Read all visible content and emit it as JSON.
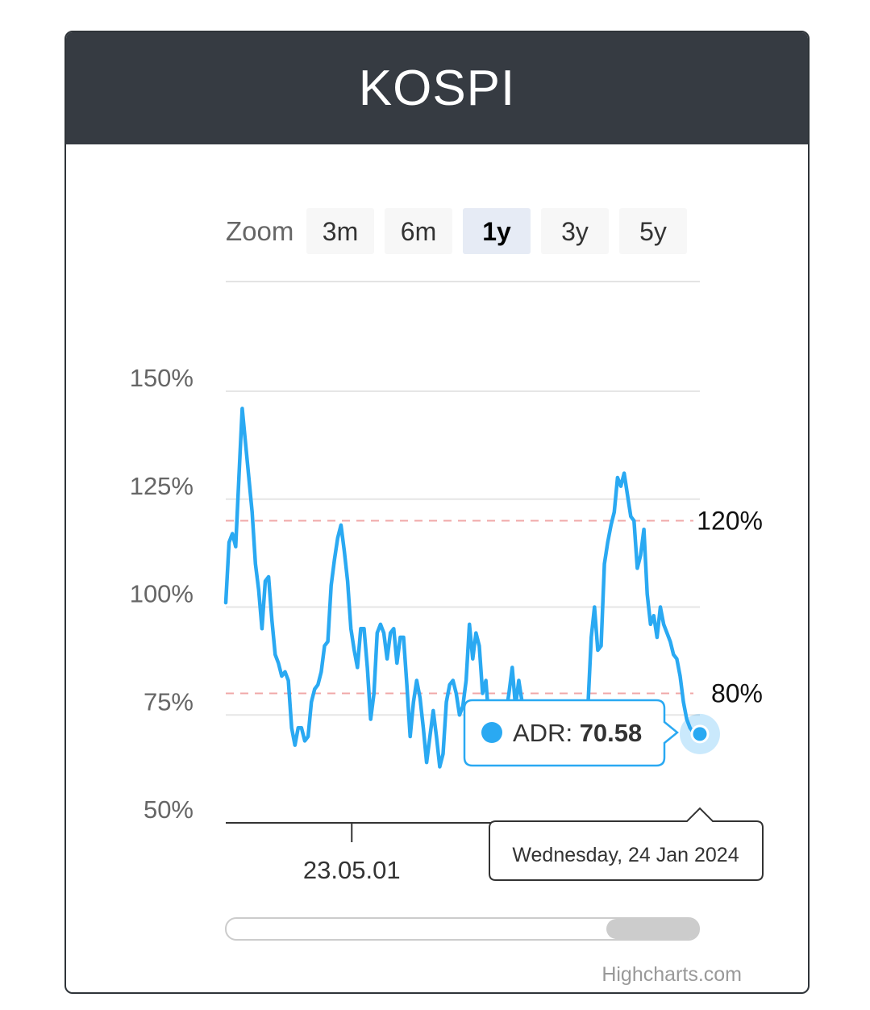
{
  "header": {
    "title": "KOSPI"
  },
  "zoom": {
    "label": "Zoom",
    "buttons": [
      {
        "label": "3m",
        "selected": false
      },
      {
        "label": "6m",
        "selected": false
      },
      {
        "label": "1y",
        "selected": true
      },
      {
        "label": "3y",
        "selected": false
      },
      {
        "label": "5y",
        "selected": false
      }
    ]
  },
  "tooltip": {
    "series_label": "ADR: ",
    "value": "70.58",
    "date": "Wednesday, 24 Jan 2024"
  },
  "credits": "Highcharts.com",
  "colors": {
    "header_bg": "#363b42",
    "line": "#2aa9f2",
    "threshold": "#f0a8a8",
    "selected_button": "#e6ebf5"
  },
  "chart_data": {
    "type": "line",
    "series": [
      {
        "name": "ADR",
        "values": [
          101,
          115,
          117,
          114,
          130,
          146,
          138,
          130,
          122,
          110,
          104,
          95,
          106,
          107,
          97,
          89,
          87,
          84,
          85,
          83,
          72,
          68,
          72,
          72,
          69,
          70,
          78,
          81,
          82,
          85,
          91,
          92,
          105,
          111,
          116,
          119,
          113,
          106,
          95,
          90,
          86,
          95,
          95,
          86,
          74,
          80,
          94,
          96,
          94,
          88,
          94,
          95,
          87,
          93,
          93,
          82,
          70,
          78,
          83,
          79,
          72,
          64,
          70,
          76,
          70,
          63,
          66,
          78,
          82,
          83,
          80,
          75,
          77,
          83,
          96,
          88,
          94,
          91,
          80,
          83,
          73,
          70,
          64,
          68,
          70,
          75,
          80,
          86,
          77,
          83,
          78,
          70,
          73,
          69,
          65,
          66,
          71,
          69,
          71,
          70,
          74,
          75,
          76,
          78,
          78,
          67,
          70,
          65,
          65,
          73,
          77,
          93,
          100,
          90,
          91,
          110,
          115,
          119,
          122,
          130,
          128,
          131,
          126,
          121,
          120,
          109,
          112,
          118,
          103,
          96,
          98,
          93,
          100,
          96,
          94,
          92,
          89,
          88,
          84,
          78,
          74,
          72,
          71,
          71.5,
          70.58
        ]
      }
    ],
    "x_start": "2023-01-24",
    "x_end": "2024-01-24",
    "xtick_labels": [
      "23.05.01"
    ],
    "yticks": [
      "50%",
      "75%",
      "100%",
      "125%",
      "150%"
    ],
    "ylim": [
      50,
      150
    ],
    "plot_bands": [
      {
        "label": "120%",
        "value": 120
      },
      {
        "label": "80%",
        "value": 80
      }
    ]
  }
}
